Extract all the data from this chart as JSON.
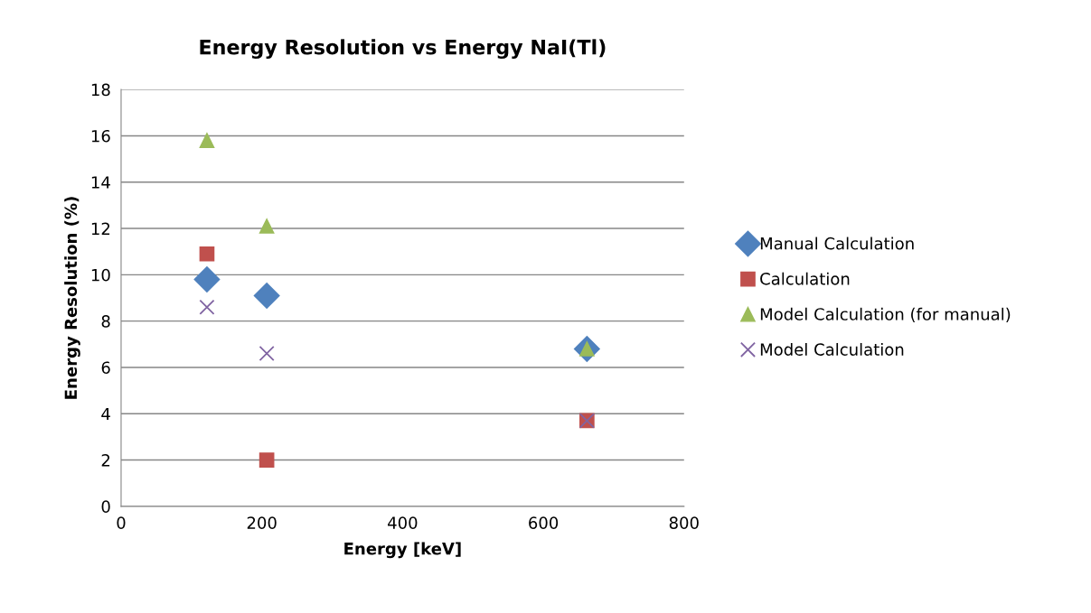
{
  "chart_data": {
    "type": "scatter",
    "title": "Energy Resolution vs Energy NaI(Tl)",
    "xlabel": "Energy [keV]",
    "ylabel": "Energy Resolution (%)",
    "x": [
      122,
      207,
      662
    ],
    "series": [
      {
        "name": "Manual Calculation",
        "color": "#4f81bd",
        "marker": "diamond",
        "values": [
          9.8,
          9.1,
          6.8
        ]
      },
      {
        "name": "Calculation",
        "color": "#c0504d",
        "marker": "square",
        "values": [
          10.9,
          2.0,
          3.7
        ]
      },
      {
        "name": "Model Calculation (for manual)",
        "color": "#9bbb59",
        "marker": "triangle",
        "values": [
          15.8,
          12.1,
          6.8
        ]
      },
      {
        "name": "Model Calculation",
        "color": "#8064a2",
        "marker": "cross",
        "values": [
          8.6,
          6.6,
          3.7
        ]
      }
    ],
    "xlim": [
      0,
      800
    ],
    "xticks": [
      0,
      200,
      400,
      600,
      800
    ],
    "ylim": [
      0,
      18
    ],
    "yticks": [
      0,
      2,
      4,
      6,
      8,
      10,
      12,
      14,
      16,
      18
    ],
    "grid": "y",
    "legend": "right"
  }
}
